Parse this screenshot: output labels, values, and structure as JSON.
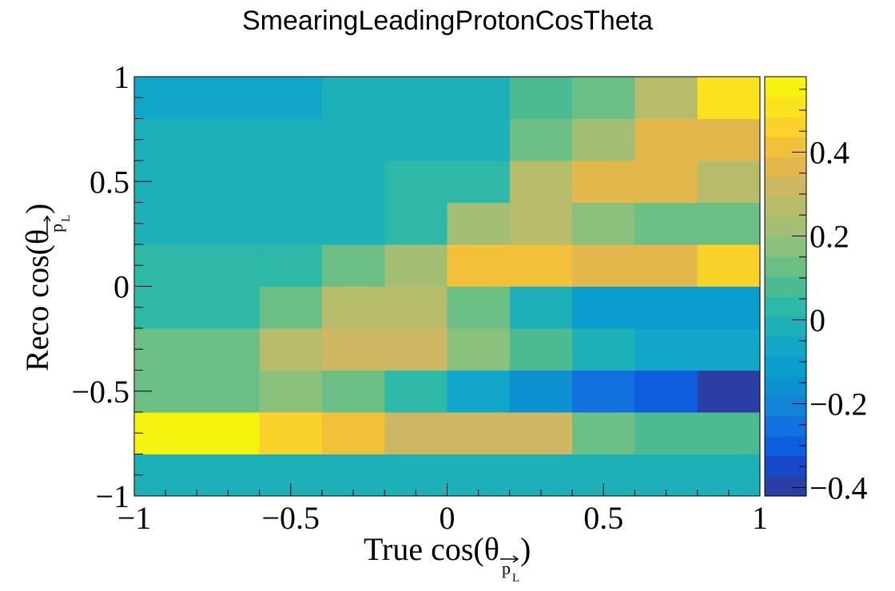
{
  "chart_data": {
    "type": "heatmap",
    "title": "SmearingLeadingProtonCosTheta",
    "xlabel": "True cos(θ",
    "ylabel": "Reco cos(θ",
    "label_symbol": "p",
    "label_subscript": "L",
    "label_close": ")",
    "x_edges": [
      -1,
      -0.6,
      -0.4,
      -0.2,
      0,
      0.2,
      0.4,
      0.6,
      0.8,
      1
    ],
    "y_edges": [
      -1,
      -0.8,
      -0.6,
      -0.4,
      -0.2,
      0,
      0.2,
      0.4,
      0.6,
      0.8,
      1
    ],
    "values": [
      [
        0.0,
        0.0,
        0.0,
        0.0,
        0.0,
        0.0,
        0.0,
        0.0,
        0.0
      ],
      [
        0.58,
        0.48,
        0.39,
        0.32,
        0.32,
        0.32,
        0.13,
        0.06,
        0.06
      ],
      [
        0.13,
        0.18,
        0.13,
        0.05,
        -0.08,
        -0.18,
        -0.23,
        -0.28,
        -0.41
      ],
      [
        0.13,
        0.26,
        0.32,
        0.32,
        0.17,
        0.06,
        -0.03,
        -0.06,
        -0.06
      ],
      [
        0.02,
        0.13,
        0.26,
        0.26,
        0.13,
        -0.01,
        -0.12,
        -0.12,
        -0.12
      ],
      [
        0.04,
        0.04,
        0.13,
        0.24,
        0.39,
        0.41,
        0.38,
        0.38,
        0.46
      ],
      [
        0.0,
        0.0,
        0.0,
        0.04,
        0.22,
        0.25,
        0.19,
        0.12,
        0.12
      ],
      [
        0.0,
        0.0,
        0.0,
        0.04,
        0.04,
        0.25,
        0.38,
        0.38,
        0.29
      ],
      [
        0.0,
        0.0,
        0.0,
        0.0,
        0.0,
        0.12,
        0.22,
        0.36,
        0.36
      ],
      [
        -0.08,
        -0.08,
        -0.02,
        -0.02,
        -0.02,
        0.06,
        0.13,
        0.25,
        0.52
      ]
    ],
    "x_ticks": [
      {
        "v": -1,
        "label": "−1"
      },
      {
        "v": -0.5,
        "label": "−0.5"
      },
      {
        "v": 0,
        "label": "0"
      },
      {
        "v": 0.5,
        "label": "0.5"
      },
      {
        "v": 1,
        "label": "1"
      }
    ],
    "y_ticks": [
      {
        "v": -1,
        "label": "−1"
      },
      {
        "v": -0.5,
        "label": "−0.5"
      },
      {
        "v": 0,
        "label": "0"
      },
      {
        "v": 0.5,
        "label": "0.5"
      },
      {
        "v": 1,
        "label": "1"
      }
    ],
    "xlim": [
      -1,
      1
    ],
    "ylim": [
      -1,
      1
    ],
    "z_range": [
      -0.42,
      0.58
    ],
    "z_ticks": [
      {
        "v": -0.4,
        "label": "−0.4"
      },
      {
        "v": -0.2,
        "label": "−0.2"
      },
      {
        "v": 0,
        "label": "0"
      },
      {
        "v": 0.2,
        "label": "0.2"
      },
      {
        "v": 0.4,
        "label": "0.4"
      }
    ],
    "palette": [
      "#2a3ea6",
      "#1748c8",
      "#0e5edd",
      "#1270df",
      "#1283d6",
      "#0d91d1",
      "#0a9ecf",
      "#10a7c8",
      "#1eb0b8",
      "#2db8a7",
      "#4cbb92",
      "#6bbf85",
      "#89c07b",
      "#a2bf73",
      "#b6bc6a",
      "#cdb762",
      "#e2b84d",
      "#f2c139",
      "#fbd22a",
      "#fae21e",
      "#f6f30f"
    ]
  }
}
